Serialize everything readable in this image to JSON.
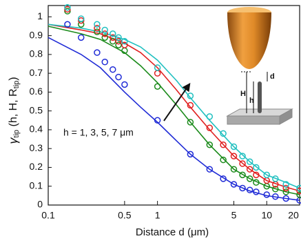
{
  "chart_data": {
    "type": "scatter_line",
    "x_label": "Distance d (μm)",
    "y_label": {
      "symbol": "γ",
      "symbol_sub": "tip",
      "args": " (h, H, R",
      "args_sub": "tip",
      "close": ")"
    },
    "annotation": "h = 1, 3, 5, 7 μm",
    "inset_labels": {
      "H": "H",
      "h": "h",
      "d": "d"
    },
    "xscale": "log",
    "xlim": [
      0.1,
      20
    ],
    "ylim": [
      0,
      1.06
    ],
    "xticks": [
      0.1,
      0.5,
      1,
      5,
      10,
      20
    ],
    "yticks": [
      0,
      0.1,
      0.2,
      0.3,
      0.4,
      0.5,
      0.6,
      0.7,
      0.8,
      0.9,
      1
    ],
    "series": [
      {
        "style": "line",
        "color": "#1f2bd6",
        "x": [
          0.1,
          0.2,
          0.3,
          0.5,
          0.7,
          1,
          1.5,
          2,
          3,
          5,
          7,
          10,
          15,
          20
        ],
        "values": [
          0.89,
          0.8,
          0.73,
          0.6,
          0.52,
          0.44,
          0.34,
          0.27,
          0.19,
          0.11,
          0.075,
          0.05,
          0.035,
          0.025
        ]
      },
      {
        "style": "line",
        "color": "#1a8a1a",
        "x": [
          0.1,
          0.2,
          0.3,
          0.5,
          0.7,
          1,
          1.5,
          2,
          3,
          5,
          7,
          10,
          15,
          20
        ],
        "values": [
          0.95,
          0.91,
          0.88,
          0.81,
          0.74,
          0.65,
          0.53,
          0.44,
          0.32,
          0.19,
          0.14,
          0.1,
          0.07,
          0.055
        ]
      },
      {
        "style": "line",
        "color": "#e02020",
        "x": [
          0.1,
          0.2,
          0.3,
          0.5,
          0.7,
          1,
          1.5,
          2,
          3,
          5,
          7,
          10,
          15,
          20
        ],
        "values": [
          0.96,
          0.93,
          0.91,
          0.86,
          0.81,
          0.73,
          0.61,
          0.52,
          0.4,
          0.26,
          0.19,
          0.13,
          0.095,
          0.075
        ]
      },
      {
        "style": "line",
        "color": "#20c0c0",
        "x": [
          0.1,
          0.2,
          0.3,
          0.5,
          0.7,
          1,
          1.5,
          2,
          3,
          5,
          7,
          10,
          15,
          20
        ],
        "values": [
          0.96,
          0.94,
          0.92,
          0.88,
          0.84,
          0.77,
          0.66,
          0.57,
          0.45,
          0.31,
          0.23,
          0.16,
          0.12,
          0.09
        ]
      },
      {
        "style": "markers",
        "color": "#1f2bd6",
        "x": [
          0.15,
          0.2,
          0.28,
          0.33,
          0.39,
          0.44,
          0.5,
          1,
          2,
          3,
          4,
          5,
          6,
          7,
          8,
          10,
          12,
          15,
          20
        ],
        "values": [
          0.96,
          0.89,
          0.81,
          0.76,
          0.72,
          0.68,
          0.64,
          0.45,
          0.27,
          0.19,
          0.14,
          0.11,
          0.09,
          0.08,
          0.07,
          0.055,
          0.045,
          0.035,
          0.025
        ]
      },
      {
        "style": "markers",
        "color": "#1a8a1a",
        "x": [
          0.15,
          0.2,
          0.28,
          0.33,
          0.39,
          0.44,
          0.5,
          1,
          2,
          3,
          4,
          5,
          6,
          7,
          8,
          10,
          12,
          15,
          20
        ],
        "values": [
          1.03,
          0.96,
          0.92,
          0.89,
          0.87,
          0.85,
          0.82,
          0.63,
          0.44,
          0.32,
          0.24,
          0.19,
          0.16,
          0.14,
          0.12,
          0.1,
          0.085,
          0.07,
          0.055
        ]
      },
      {
        "style": "markers",
        "color": "#e02020",
        "x": [
          0.15,
          0.2,
          0.28,
          0.33,
          0.39,
          0.44,
          0.5,
          1,
          2,
          3,
          4,
          5,
          6,
          7,
          8,
          10,
          12,
          15,
          20
        ],
        "values": [
          1.04,
          0.98,
          0.94,
          0.91,
          0.89,
          0.87,
          0.85,
          0.7,
          0.53,
          0.41,
          0.32,
          0.26,
          0.22,
          0.19,
          0.16,
          0.13,
          0.11,
          0.09,
          0.075
        ]
      },
      {
        "style": "markers",
        "color": "#20c0c0",
        "x": [
          0.15,
          0.2,
          0.28,
          0.33,
          0.39,
          0.44,
          0.5,
          1,
          2,
          3,
          4,
          5,
          6,
          7,
          8,
          10,
          12,
          15,
          20
        ],
        "values": [
          1.05,
          0.99,
          0.96,
          0.93,
          0.91,
          0.89,
          0.87,
          0.73,
          0.58,
          0.47,
          0.38,
          0.31,
          0.26,
          0.23,
          0.2,
          0.16,
          0.14,
          0.11,
          0.09
        ]
      }
    ]
  }
}
